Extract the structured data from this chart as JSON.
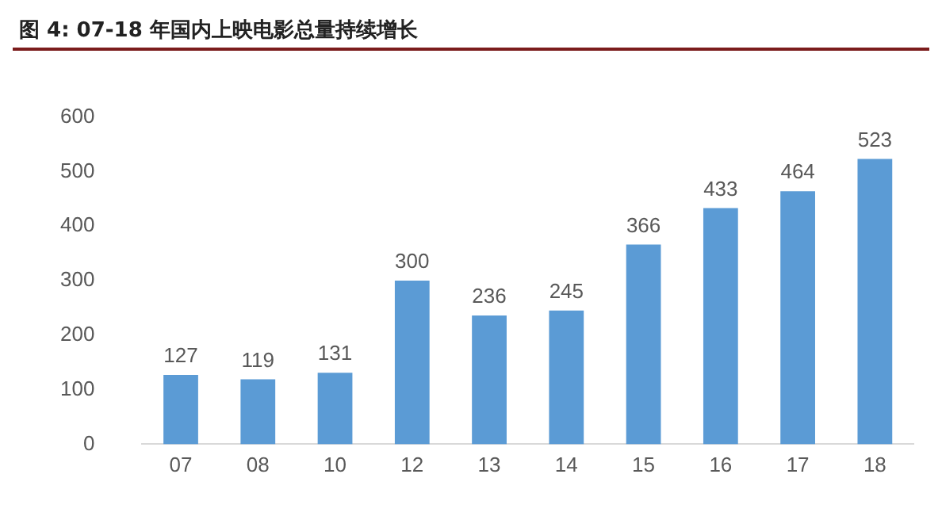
{
  "chart_data": {
    "type": "bar",
    "title": "图 4: 07-18 年国内上映电影总量持续增长",
    "categories": [
      "07",
      "08",
      "10",
      "12",
      "13",
      "14",
      "15",
      "16",
      "17",
      "18"
    ],
    "values": [
      127,
      119,
      131,
      300,
      236,
      245,
      366,
      433,
      464,
      523
    ],
    "color": "#5b9bd5",
    "ylim": [
      0,
      600
    ],
    "yticks": [
      0,
      100,
      200,
      300,
      400,
      500,
      600
    ],
    "grid": false,
    "data_labels": true
  }
}
